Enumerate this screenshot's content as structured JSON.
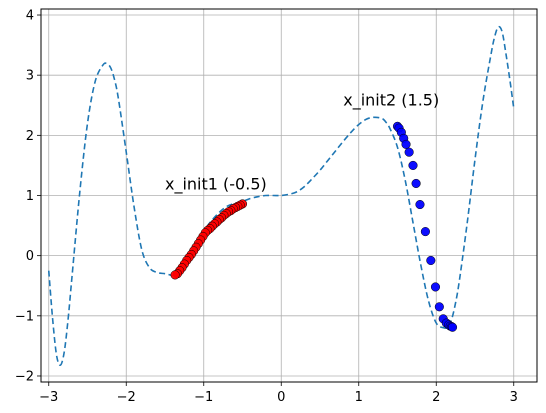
{
  "chart_data": {
    "type": "line",
    "title": "",
    "xlabel": "",
    "ylabel": "",
    "xlim": [
      -3.1,
      3.3
    ],
    "ylim": [
      -2.1,
      4.1
    ],
    "grid": true,
    "xticks": [
      -3,
      -2,
      -1,
      0,
      1,
      2,
      3
    ],
    "xtick_labels": [
      "−3",
      "−2",
      "−1",
      "0",
      "1",
      "2",
      "3"
    ],
    "yticks": [
      -2,
      -1,
      0,
      1,
      2,
      3,
      4
    ],
    "ytick_labels": [
      "−2",
      "−1",
      "0",
      "1",
      "2",
      "3",
      "4"
    ],
    "curve": {
      "style": "dashed",
      "color": "#1f77b4",
      "x": [
        -3.0,
        -2.95,
        -2.9,
        -2.85,
        -2.8,
        -2.75,
        -2.7,
        -2.6,
        -2.5,
        -2.4,
        -2.3,
        -2.25,
        -2.2,
        -2.15,
        -2.1,
        -2.0,
        -1.9,
        -1.8,
        -1.7,
        -1.6,
        -1.5,
        -1.4,
        -1.35,
        -1.3,
        -1.2,
        -1.1,
        -1.0,
        -0.9,
        -0.8,
        -0.7,
        -0.6,
        -0.5,
        -0.4,
        -0.3,
        -0.2,
        -0.1,
        0.0,
        0.1,
        0.2,
        0.3,
        0.4,
        0.5,
        0.6,
        0.7,
        0.8,
        0.9,
        1.0,
        1.1,
        1.2,
        1.3,
        1.35,
        1.4,
        1.5,
        1.6,
        1.7,
        1.8,
        1.9,
        2.0,
        2.1,
        2.15,
        2.2,
        2.25,
        2.3,
        2.4,
        2.5,
        2.6,
        2.7,
        2.75,
        2.8,
        2.85,
        2.9,
        2.95,
        3.0
      ],
      "y": [
        -0.25,
        -1.05,
        -1.65,
        -1.82,
        -1.6,
        -1.05,
        -0.35,
        1.05,
        2.2,
        2.9,
        3.17,
        3.19,
        3.12,
        2.92,
        2.6,
        1.72,
        0.82,
        0.1,
        -0.2,
        -0.28,
        -0.3,
        -0.33,
        -0.33,
        -0.29,
        -0.1,
        0.18,
        0.41,
        0.58,
        0.72,
        0.82,
        0.87,
        0.9,
        0.95,
        0.98,
        1.0,
        1.0,
        1.0,
        1.02,
        1.06,
        1.15,
        1.28,
        1.42,
        1.58,
        1.74,
        1.9,
        2.05,
        2.18,
        2.27,
        2.3,
        2.28,
        2.22,
        2.12,
        1.8,
        1.25,
        0.55,
        -0.15,
        -0.75,
        -1.12,
        -1.2,
        -1.18,
        -1.05,
        -0.78,
        -0.4,
        0.55,
        1.6,
        2.55,
        3.3,
        3.62,
        3.8,
        3.72,
        3.35,
        2.92,
        2.45
      ]
    },
    "series": [
      {
        "marker": "circle",
        "color": "#ff0000",
        "x": [
          -0.5,
          -0.53,
          -0.56,
          -0.59,
          -0.62,
          -0.65,
          -0.68,
          -0.71,
          -0.74,
          -0.77,
          -0.8,
          -0.83,
          -0.86,
          -0.89,
          -0.92,
          -0.95,
          -0.98,
          -1.01,
          -1.04,
          -1.07,
          -1.1,
          -1.13,
          -1.16,
          -1.19,
          -1.22,
          -1.25,
          -1.28,
          -1.31,
          -1.34,
          -1.37
        ],
        "y": [
          0.86,
          0.84,
          0.82,
          0.8,
          0.78,
          0.75,
          0.73,
          0.7,
          0.67,
          0.63,
          0.6,
          0.56,
          0.53,
          0.49,
          0.45,
          0.42,
          0.38,
          0.32,
          0.26,
          0.2,
          0.14,
          0.08,
          0.02,
          -0.03,
          -0.08,
          -0.14,
          -0.2,
          -0.25,
          -0.3,
          -0.32
        ]
      },
      {
        "marker": "circle",
        "color": "#0000ff",
        "x": [
          1.5,
          1.52,
          1.55,
          1.58,
          1.61,
          1.65,
          1.7,
          1.74,
          1.79,
          1.86,
          1.93,
          1.99,
          2.04,
          2.09,
          2.13,
          2.16,
          2.18,
          2.2,
          2.21
        ],
        "y": [
          2.15,
          2.12,
          2.05,
          1.95,
          1.85,
          1.72,
          1.5,
          1.2,
          0.85,
          0.4,
          -0.08,
          -0.52,
          -0.85,
          -1.05,
          -1.12,
          -1.15,
          -1.17,
          -1.18,
          -1.19
        ]
      }
    ],
    "annotations": [
      {
        "text": "x_init1 (-0.5)",
        "x": -1.5,
        "y": 1.1
      },
      {
        "text": "x_init2 (1.5)",
        "x": 0.8,
        "y": 2.5
      }
    ]
  }
}
